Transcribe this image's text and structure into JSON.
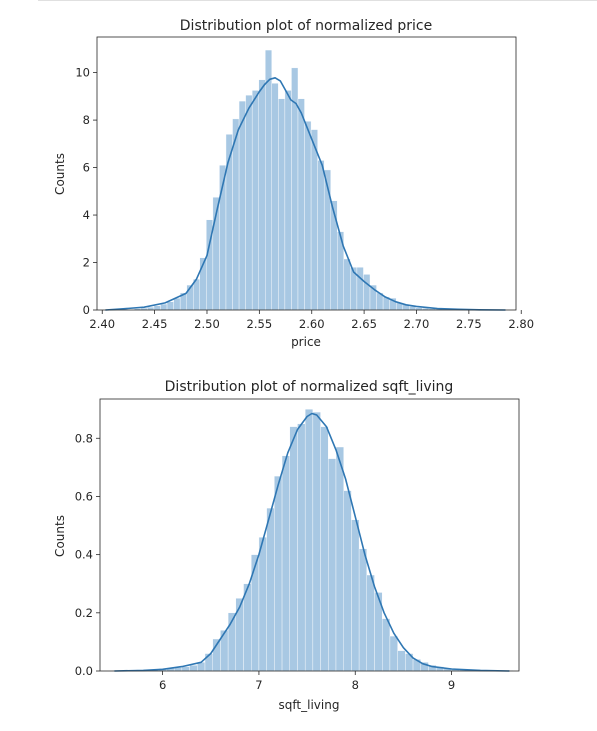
{
  "chart_data": [
    {
      "type": "bar",
      "title": "Distribution plot of normalized price",
      "xlabel": "price",
      "ylabel": "Counts",
      "xlim": [
        2.395,
        2.795
      ],
      "ylim": [
        0,
        11.5
      ],
      "xticks": [
        "2.40",
        "2.45",
        "2.50",
        "2.55",
        "2.60",
        "2.65",
        "2.70",
        "2.75",
        "2.80"
      ],
      "yticks": [
        "0",
        "2",
        "4",
        "6",
        "8",
        "10"
      ],
      "bin_width": 0.00625,
      "bins_x": [
        2.4025,
        2.40875,
        2.415,
        2.42125,
        2.4275,
        2.43375,
        2.44,
        2.44625,
        2.4525,
        2.45875,
        2.465,
        2.47125,
        2.4775,
        2.48375,
        2.49,
        2.49625,
        2.5025,
        2.50875,
        2.515,
        2.52125,
        2.5275,
        2.53375,
        2.54,
        2.54625,
        2.5525,
        2.55875,
        2.565,
        2.57125,
        2.5775,
        2.58375,
        2.59,
        2.59625,
        2.6025,
        2.60875,
        2.615,
        2.62125,
        2.6275,
        2.63375,
        2.64,
        2.64625,
        2.6525,
        2.65875,
        2.665,
        2.67125,
        2.6775,
        2.68375,
        2.69,
        2.69625,
        2.7025,
        2.70875,
        2.715,
        2.72125,
        2.7275,
        2.73375,
        2.74,
        2.74625,
        2.7525,
        2.75875,
        2.765,
        2.77125,
        2.7775,
        2.78375
      ],
      "bins_counts": [
        0.02,
        0,
        0,
        0,
        0.02,
        0.05,
        0.08,
        0.12,
        0.18,
        0.25,
        0.35,
        0.5,
        0.72,
        1.05,
        1.3,
        2.2,
        3.8,
        4.75,
        6.1,
        7.4,
        8.05,
        8.8,
        9.05,
        9.25,
        9.7,
        10.95,
        9.55,
        8.9,
        9.25,
        10.2,
        8.9,
        7.95,
        7.6,
        6.3,
        5.9,
        4.6,
        3.3,
        2.15,
        1.8,
        1.8,
        1.5,
        1.05,
        0.72,
        0.55,
        0.5,
        0.3,
        0.22,
        0.15,
        0.1,
        0.07,
        0.05,
        0.03,
        0.02,
        0.02,
        0.02,
        0.01,
        0.01,
        0,
        0,
        0,
        0,
        0.02
      ],
      "kde": {
        "name": "",
        "x": [
          2.403,
          2.42,
          2.44,
          2.46,
          2.48,
          2.49,
          2.5,
          2.51,
          2.52,
          2.53,
          2.54,
          2.55,
          2.555,
          2.56,
          2.565,
          2.57,
          2.575,
          2.58,
          2.585,
          2.59,
          2.6,
          2.61,
          2.62,
          2.63,
          2.64,
          2.65,
          2.66,
          2.67,
          2.68,
          2.69,
          2.7,
          2.72,
          2.74,
          2.76,
          2.785
        ],
        "y": [
          0,
          0.05,
          0.12,
          0.3,
          0.7,
          1.3,
          2.3,
          4.3,
          6.2,
          7.6,
          8.5,
          9.2,
          9.5,
          9.72,
          9.78,
          9.65,
          9.25,
          8.85,
          8.7,
          8.3,
          7.2,
          6.1,
          4.3,
          2.7,
          1.6,
          1.2,
          0.85,
          0.55,
          0.35,
          0.22,
          0.15,
          0.06,
          0.03,
          0.01,
          0
        ]
      }
    },
    {
      "type": "bar",
      "title": "Distribution plot of normalized sqft_living",
      "xlabel": "sqft_living",
      "ylabel": "Counts",
      "xlim": [
        5.35,
        9.7
      ],
      "ylim": [
        0,
        0.935
      ],
      "xticks": [
        "6",
        "7",
        "8",
        "9"
      ],
      "yticks": [
        "0.0",
        "0.2",
        "0.4",
        "0.6",
        "0.8"
      ],
      "bin_width": 0.08,
      "bins_x": [
        5.52,
        5.6,
        5.68,
        5.76,
        5.84,
        5.92,
        6,
        6.08,
        6.16,
        6.24,
        6.32,
        6.4,
        6.48,
        6.56,
        6.64,
        6.72,
        6.8,
        6.88,
        6.96,
        7.04,
        7.12,
        7.2,
        7.28,
        7.36,
        7.44,
        7.52,
        7.6,
        7.68,
        7.76,
        7.84,
        7.92,
        8,
        8.08,
        8.16,
        8.24,
        8.32,
        8.4,
        8.48,
        8.56,
        8.64,
        8.72,
        8.8,
        8.88,
        8.96,
        9.04,
        9.12,
        9.2,
        9.28,
        9.36,
        9.44,
        9.52,
        9.6
      ],
      "bins_counts": [
        0.002,
        0.002,
        0.003,
        0.004,
        0.005,
        0.006,
        0.008,
        0.01,
        0.012,
        0.015,
        0.02,
        0.03,
        0.06,
        0.11,
        0.14,
        0.2,
        0.25,
        0.3,
        0.4,
        0.46,
        0.56,
        0.67,
        0.74,
        0.84,
        0.85,
        0.9,
        0.89,
        0.84,
        0.73,
        0.77,
        0.62,
        0.52,
        0.42,
        0.33,
        0.27,
        0.18,
        0.12,
        0.07,
        0.06,
        0.04,
        0.03,
        0.02,
        0.015,
        0.01,
        0.008,
        0.006,
        0.005,
        0.004,
        0.003,
        0.002,
        0.002,
        0.002
      ],
      "kde": {
        "name": "",
        "x": [
          5.5,
          5.8,
          6.0,
          6.2,
          6.4,
          6.5,
          6.6,
          6.7,
          6.8,
          6.9,
          7.0,
          7.1,
          7.2,
          7.3,
          7.4,
          7.5,
          7.55,
          7.6,
          7.7,
          7.8,
          7.9,
          8.0,
          8.1,
          8.2,
          8.3,
          8.4,
          8.5,
          8.6,
          8.7,
          8.8,
          9.0,
          9.3,
          9.6
        ],
        "y": [
          0,
          0.002,
          0.006,
          0.015,
          0.03,
          0.06,
          0.11,
          0.16,
          0.22,
          0.3,
          0.4,
          0.52,
          0.64,
          0.75,
          0.83,
          0.875,
          0.885,
          0.88,
          0.84,
          0.76,
          0.66,
          0.53,
          0.4,
          0.29,
          0.2,
          0.13,
          0.08,
          0.045,
          0.025,
          0.015,
          0.007,
          0.002,
          0
        ]
      }
    }
  ],
  "colors": {
    "bar": "#a8c8e3",
    "kde": "#2f77b3",
    "axis": "#262626"
  }
}
